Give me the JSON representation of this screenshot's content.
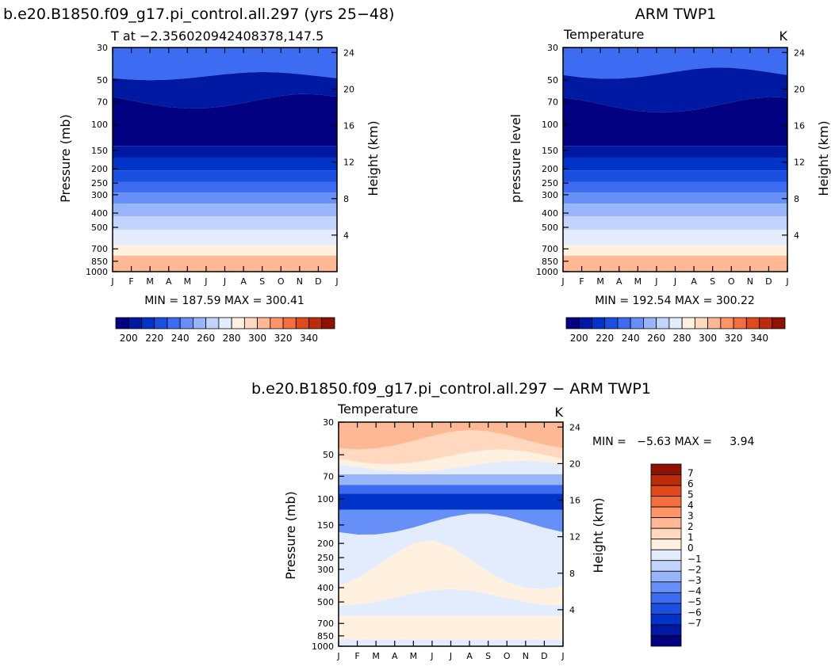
{
  "colors": {
    "abs_palette": [
      "#000080",
      "#0019a3",
      "#0033c7",
      "#1a4fe0",
      "#3d6cf2",
      "#6690f7",
      "#99b5fa",
      "#c2d4fb",
      "#e3ecfd",
      "#fff0e0",
      "#ffd8bf",
      "#ffb894",
      "#ff9466",
      "#f56e3d",
      "#e04a1a",
      "#bd2c0a",
      "#8f1200"
    ],
    "diff_palette": [
      "#000080",
      "#0019a3",
      "#0033c7",
      "#1a4fe0",
      "#3d6cf2",
      "#6690f7",
      "#99b5fa",
      "#c2d4fb",
      "#e3ecfd",
      "#fff0e0",
      "#ffd8bf",
      "#ffb894",
      "#ff9466",
      "#f56e3d",
      "#e04a1a",
      "#bd2c0a",
      "#8f1200"
    ],
    "outline": "#000000",
    "background": "#ffffff"
  },
  "chart_data": [
    {
      "type": "heatmap",
      "panel_title": "b.e20.B1850.f09_g17.pi_control.all.297 (yrs 25−48)",
      "subtitle": "T at −2.356020942408378,147.5",
      "ylabel": "Pressure (mb)",
      "y2label": "Height (km)",
      "x_ticklabels": [
        "J",
        "F",
        "M",
        "A",
        "M",
        "J",
        "J",
        "A",
        "S",
        "O",
        "N",
        "D",
        "J"
      ],
      "y_ticklabels": [
        "30",
        "50",
        "70",
        "100",
        "150",
        "200",
        "250",
        "300",
        "400",
        "500",
        "700",
        "850",
        "1000"
      ],
      "y2_ticklabels": [
        "24",
        "20",
        "16",
        "12",
        "8",
        "4"
      ],
      "stats": "MIN = 187.59 MAX = 300.41",
      "colorbar_labels": [
        "200",
        "220",
        "240",
        "260",
        "280",
        "300",
        "320",
        "340"
      ]
    },
    {
      "type": "heatmap",
      "panel_title": "ARM TWP1",
      "left_string": "Temperature",
      "right_string": "K",
      "ylabel": "pressure level",
      "y2label": "Height (km)",
      "x_ticklabels": [
        "J",
        "F",
        "M",
        "A",
        "M",
        "J",
        "J",
        "A",
        "S",
        "O",
        "N",
        "D",
        "J"
      ],
      "y_ticklabels": [
        "30",
        "50",
        "70",
        "100",
        "150",
        "200",
        "250",
        "300",
        "400",
        "500",
        "700",
        "850",
        "1000"
      ],
      "y2_ticklabels": [
        "24",
        "20",
        "16",
        "12",
        "8",
        "4"
      ],
      "stats": "MIN = 192.54 MAX = 300.22",
      "colorbar_labels": [
        "200",
        "220",
        "240",
        "260",
        "280",
        "300",
        "320",
        "340"
      ]
    },
    {
      "type": "heatmap",
      "panel_title": "b.e20.B1850.f09_g17.pi_control.all.297 − ARM TWP1",
      "left_string": "Temperature",
      "right_string": "K",
      "ylabel": "Pressure (mb)",
      "y2label": "Height (km)",
      "x_ticklabels": [
        "J",
        "F",
        "M",
        "A",
        "M",
        "J",
        "J",
        "A",
        "S",
        "O",
        "N",
        "D",
        "J"
      ],
      "y_ticklabels": [
        "30",
        "50",
        "70",
        "100",
        "150",
        "200",
        "250",
        "300",
        "400",
        "500",
        "700",
        "850",
        "1000"
      ],
      "y2_ticklabels": [
        "24",
        "20",
        "16",
        "12",
        "8",
        "4"
      ],
      "stats": "MIN =   −5.63 MAX =     3.94",
      "colorbar_labels": [
        "7",
        "6",
        "5",
        "4",
        "3",
        "2",
        "1",
        "0",
        "−1",
        "−2",
        "−3",
        "−4",
        "−5",
        "−6",
        "−7"
      ]
    }
  ]
}
